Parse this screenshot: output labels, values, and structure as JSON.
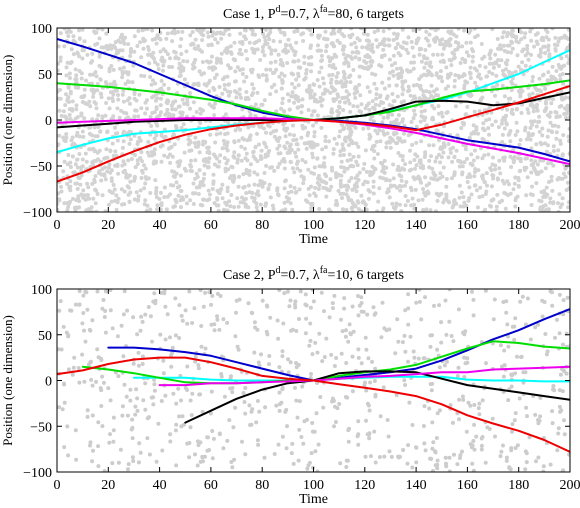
{
  "chart_data": [
    {
      "type": "line",
      "title": "Case 1, P",
      "title_parts": [
        "Case 1, P",
        "d",
        "=0.7, λ",
        "fa",
        "=80, 6 targets"
      ],
      "xlabel": "Time",
      "ylabel": "Position (one dimension)",
      "xlim": [
        0,
        200
      ],
      "ylim": [
        -100,
        100
      ],
      "xticks": [
        0,
        20,
        40,
        60,
        80,
        100,
        120,
        140,
        160,
        180,
        200
      ],
      "yticks": [
        -100,
        -50,
        0,
        50,
        100
      ],
      "grid": false,
      "clutter": {
        "color": "#d3d3d3",
        "count": 3200,
        "seed": 11
      },
      "series": [
        {
          "color": "#0000cc",
          "x": [
            0,
            10,
            20,
            30,
            40,
            50,
            60,
            70,
            80,
            90,
            100,
            110,
            120,
            130,
            140,
            150,
            160,
            170,
            180,
            190,
            200
          ],
          "values": [
            88,
            80,
            71,
            62,
            50,
            38,
            26,
            16,
            8,
            3,
            0,
            -1,
            -3,
            -6,
            -10,
            -16,
            -22,
            -26,
            -30,
            -37,
            -45
          ]
        },
        {
          "color": "#00ffff",
          "x": [
            0,
            10,
            20,
            30,
            40,
            50,
            60,
            70,
            80,
            90,
            100,
            110,
            120,
            130,
            140,
            150,
            160,
            170,
            180,
            190,
            200
          ],
          "values": [
            -35,
            -27,
            -20,
            -15,
            -13,
            -11,
            -8,
            -5,
            -3,
            -1,
            0,
            2,
            5,
            10,
            16,
            22,
            30,
            40,
            50,
            63,
            76
          ]
        },
        {
          "color": "#00dd00",
          "x": [
            0,
            10,
            20,
            30,
            40,
            50,
            60,
            70,
            80,
            90,
            100,
            110,
            120,
            130,
            140,
            150,
            160,
            170,
            180,
            190,
            200
          ],
          "values": [
            40,
            38,
            36,
            33,
            30,
            26,
            22,
            17,
            10,
            4,
            0,
            2,
            5,
            9,
            16,
            24,
            31,
            33,
            36,
            39,
            43
          ]
        },
        {
          "color": "#000000",
          "x": [
            0,
            10,
            20,
            30,
            40,
            50,
            60,
            70,
            80,
            90,
            100,
            110,
            120,
            130,
            140,
            150,
            160,
            170,
            180,
            190,
            200
          ],
          "values": [
            -8,
            -6,
            -4,
            -2,
            -1,
            0,
            0,
            0,
            0,
            0,
            0,
            2,
            5,
            12,
            20,
            21,
            20,
            16,
            18,
            24,
            30
          ]
        },
        {
          "color": "#ee00ee",
          "x": [
            0,
            10,
            20,
            30,
            40,
            50,
            60,
            70,
            80,
            90,
            100,
            110,
            120,
            130,
            140,
            150,
            160,
            170,
            180,
            190,
            200
          ],
          "values": [
            -3,
            -2,
            -1,
            0,
            1,
            2,
            2,
            2,
            2,
            1,
            0,
            -2,
            -5,
            -9,
            -14,
            -20,
            -26,
            -31,
            -36,
            -42,
            -48
          ]
        },
        {
          "color": "#ee0000",
          "x": [
            0,
            10,
            20,
            30,
            40,
            50,
            60,
            70,
            80,
            90,
            100,
            110,
            120,
            130,
            140,
            150,
            160,
            170,
            180,
            190,
            200
          ],
          "values": [
            -67,
            -57,
            -45,
            -34,
            -24,
            -16,
            -10,
            -6,
            -3,
            -1,
            0,
            -2,
            -4,
            -7,
            -11,
            -5,
            3,
            11,
            19,
            28,
            37
          ]
        }
      ]
    },
    {
      "type": "line",
      "title": "Case 2, P",
      "title_parts": [
        "Case 2, P",
        "d",
        "=0.7, λ",
        "fa",
        "=10, 6 targets"
      ],
      "xlabel": "Time",
      "ylabel": "Position (one dimension)",
      "xlim": [
        0,
        200
      ],
      "ylim": [
        -100,
        100
      ],
      "xticks": [
        0,
        20,
        40,
        60,
        80,
        100,
        120,
        140,
        160,
        180,
        200
      ],
      "yticks": [
        -100,
        -50,
        0,
        50,
        100
      ],
      "grid": false,
      "clutter": {
        "color": "#cccccc",
        "count": 820,
        "seed": 5
      },
      "series": [
        {
          "color": "#0000cc",
          "x": [
            20,
            30,
            40,
            50,
            60,
            70,
            80,
            90,
            100,
            110,
            120,
            130,
            140,
            150,
            160,
            170,
            180,
            190,
            200
          ],
          "values": [
            36,
            36,
            34,
            31,
            27,
            20,
            13,
            6,
            0,
            3,
            6,
            9,
            13,
            22,
            33,
            45,
            55,
            67,
            78
          ]
        },
        {
          "color": "#00ffff",
          "x": [
            30,
            40,
            50,
            60,
            70,
            80,
            90,
            100,
            110,
            120,
            130,
            140,
            150,
            160,
            170,
            180,
            190,
            200
          ],
          "values": [
            3,
            3,
            3,
            1,
            0,
            0,
            0,
            0,
            2,
            3,
            4,
            4,
            4,
            1,
            0,
            0,
            -1,
            -1
          ]
        },
        {
          "color": "#00dd00",
          "x": [
            10,
            20,
            30,
            40,
            50,
            60,
            70,
            80,
            90,
            100,
            110,
            120,
            130,
            140,
            150,
            160,
            170,
            180,
            190,
            200
          ],
          "values": [
            15,
            12,
            8,
            3,
            -2,
            -3,
            -3,
            -2,
            0,
            0,
            5,
            9,
            12,
            17,
            26,
            35,
            43,
            41,
            37,
            35
          ]
        },
        {
          "color": "#000000",
          "x": [
            50,
            60,
            70,
            80,
            90,
            100,
            110,
            120,
            130,
            140,
            150,
            160,
            170,
            180,
            190,
            200
          ],
          "values": [
            -46,
            -33,
            -20,
            -10,
            -3,
            0,
            8,
            10,
            10,
            9,
            2,
            -5,
            -9,
            -13,
            -17,
            -21
          ]
        },
        {
          "color": "#ee00ee",
          "x": [
            40,
            50,
            60,
            70,
            80,
            90,
            100,
            110,
            120,
            130,
            140,
            150,
            160,
            170,
            180,
            190,
            200
          ],
          "values": [
            -5,
            -5,
            -3,
            -3,
            -2,
            -1,
            0,
            2,
            4,
            5,
            7,
            9,
            9,
            12,
            13,
            14,
            15
          ]
        },
        {
          "color": "#ee0000",
          "x": [
            0,
            10,
            20,
            30,
            40,
            50,
            60,
            70,
            80,
            90,
            100,
            110,
            120,
            130,
            140,
            150,
            160,
            170,
            180,
            190,
            200
          ],
          "values": [
            7,
            11,
            18,
            23,
            25,
            25,
            20,
            13,
            5,
            2,
            0,
            -4,
            -8,
            -12,
            -17,
            -26,
            -38,
            -47,
            -55,
            -65,
            -78
          ]
        }
      ]
    }
  ]
}
